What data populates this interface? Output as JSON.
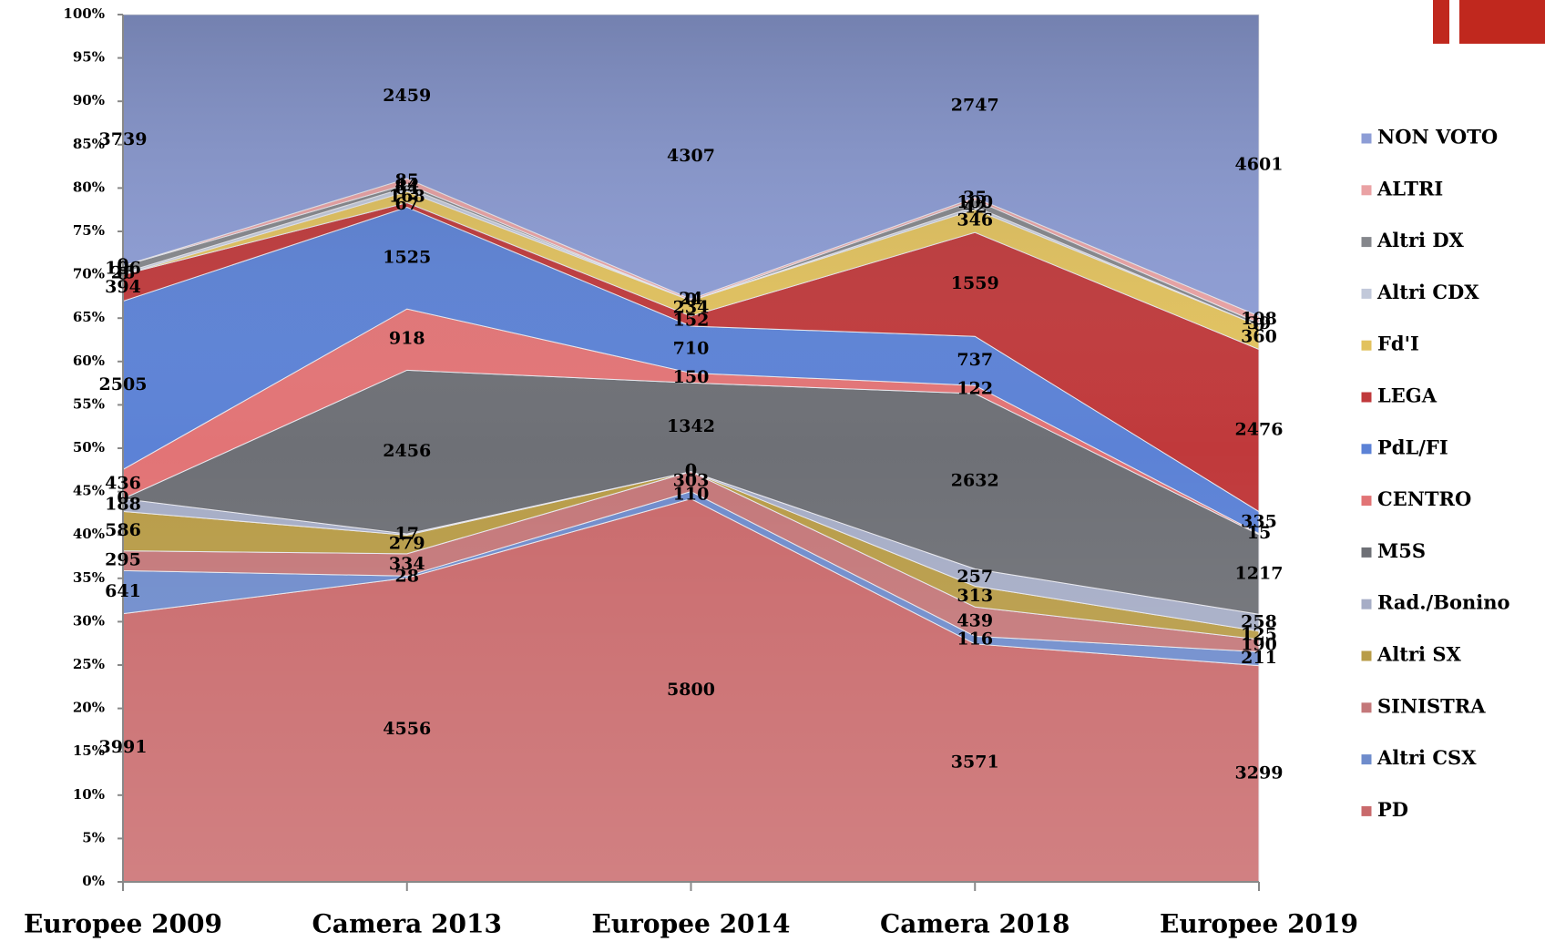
{
  "chart_data": {
    "type": "stacked_area_100",
    "categories": [
      "Europee 2009",
      "Camera 2013",
      "Europee 2014",
      "Camera 2018",
      "Europee 2019"
    ],
    "series": [
      {
        "name": "PD",
        "color": "#c96a6c",
        "values": [
          3991,
          4556,
          5800,
          3571,
          3299
        ]
      },
      {
        "name": "Altri CSX",
        "color": "#6f8ccc",
        "values": [
          641,
          28,
          110,
          116,
          211
        ]
      },
      {
        "name": "SINISTRA",
        "color": "#c4787a",
        "values": [
          295,
          334,
          303,
          439,
          190
        ]
      },
      {
        "name": "Altri SX",
        "color": "#b89c48",
        "values": [
          586,
          279,
          0,
          313,
          125
        ]
      },
      {
        "name": "Rad./Bonino",
        "color": "#a6adc6",
        "values": [
          188,
          17,
          0,
          257,
          258
        ]
      },
      {
        "name": "M5S",
        "color": "#6e7076",
        "values": [
          0,
          2456,
          1342,
          2632,
          1217
        ]
      },
      {
        "name": "CENTRO",
        "color": "#e27476",
        "values": [
          436,
          918,
          150,
          122,
          15
        ]
      },
      {
        "name": "PdL/FI",
        "color": "#5c82d6",
        "values": [
          2505,
          1525,
          710,
          737,
          335
        ]
      },
      {
        "name": "LEGA",
        "color": "#c0393b",
        "values": [
          394,
          67,
          152,
          1559,
          2476
        ]
      },
      {
        "name": "Fd'I",
        "color": "#e2c25e",
        "values": [
          0,
          168,
          234,
          346,
          360
        ]
      },
      {
        "name": "Altri CDX",
        "color": "#c2c9da",
        "values": [
          26,
          64,
          0,
          42,
          0
        ]
      },
      {
        "name": "Altri DX",
        "color": "#85878c",
        "values": [
          106,
          44,
          0,
          100,
          39
        ]
      },
      {
        "name": "ALTRI",
        "color": "#eaa2a4",
        "values": [
          0,
          85,
          24,
          35,
          108
        ]
      },
      {
        "name": "NON VOTO",
        "color": "#8d9dd6",
        "values": [
          3739,
          2459,
          4307,
          2747,
          4601
        ]
      }
    ],
    "ylim": [
      0,
      100
    ],
    "yticks": [
      {
        "value": 0,
        "label": "0%"
      },
      {
        "value": 5,
        "label": "5%"
      },
      {
        "value": 10,
        "label": "10%"
      },
      {
        "value": 15,
        "label": "15%"
      },
      {
        "value": 20,
        "label": "20%"
      },
      {
        "value": 25,
        "label": "25%"
      },
      {
        "value": 30,
        "label": "30%"
      },
      {
        "value": 35,
        "label": "35%"
      },
      {
        "value": 40,
        "label": "40%"
      },
      {
        "value": 45,
        "label": "45%"
      },
      {
        "value": 50,
        "label": "50%"
      },
      {
        "value": 55,
        "label": "55%"
      },
      {
        "value": 60,
        "label": "60%"
      },
      {
        "value": 65,
        "label": "65%"
      },
      {
        "value": 70,
        "label": "70%"
      },
      {
        "value": 75,
        "label": "75%"
      },
      {
        "value": 80,
        "label": "80%"
      },
      {
        "value": 85,
        "label": "85%"
      },
      {
        "value": 90,
        "label": "90%"
      },
      {
        "value": 95,
        "label": "95%"
      },
      {
        "value": 100,
        "label": "100%"
      }
    ]
  }
}
